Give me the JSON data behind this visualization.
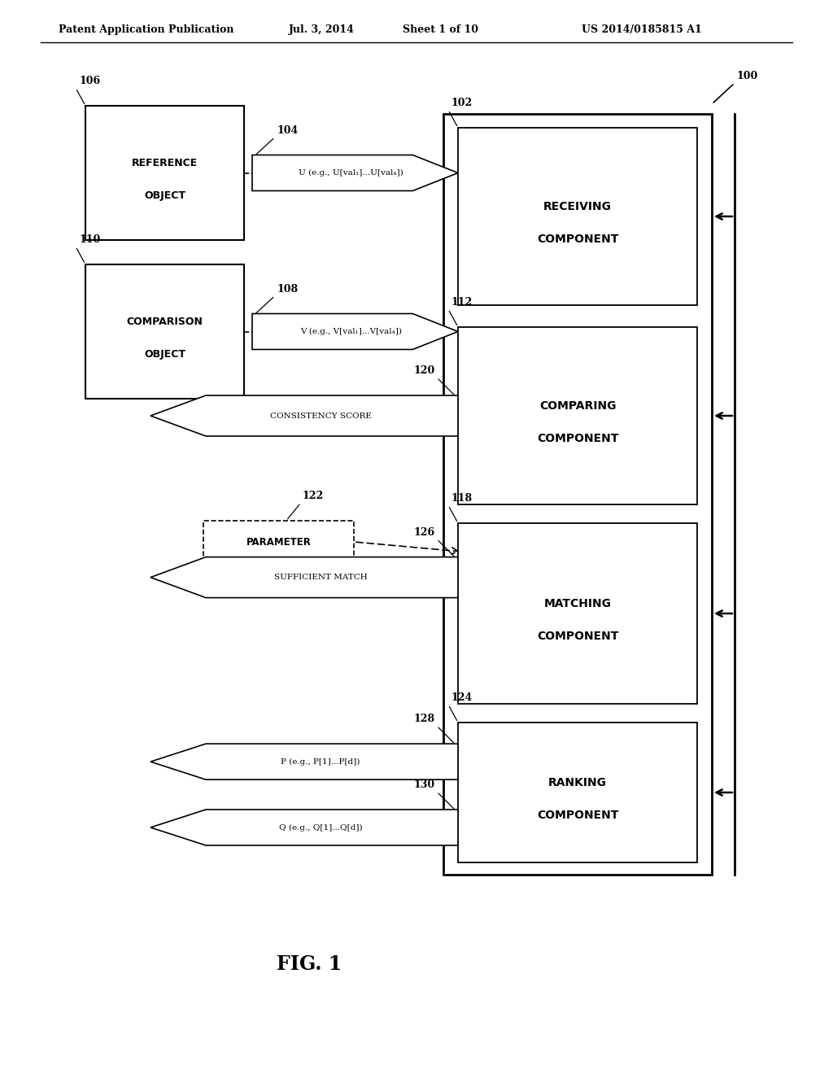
{
  "bg_color": "#ffffff",
  "header_text": "Patent Application Publication",
  "header_date": "Jul. 3, 2014",
  "header_sheet": "Sheet 1 of 10",
  "header_patent": "US 2014/0185815 A1",
  "fig_label": "FIG. 1",
  "label_100": "100",
  "label_102": "102",
  "label_104": "104",
  "label_106": "106",
  "label_108": "108",
  "label_110": "110",
  "label_112": "112",
  "label_118": "118",
  "label_120": "120",
  "label_122": "122",
  "label_124": "124",
  "label_126": "126",
  "label_128": "128",
  "label_130": "130",
  "box_ref_line1": "REFERENCE",
  "box_ref_line2": "OBJECT",
  "box_comp_line1": "COMPARISON",
  "box_comp_line2": "OBJECT",
  "box_receiving_line1": "RECEIVING",
  "box_receiving_line2": "COMPONENT",
  "box_comparing_line1": "COMPARING",
  "box_comparing_line2": "COMPONENT",
  "box_matching_line1": "MATCHING",
  "box_matching_line2": "COMPONENT",
  "box_ranking_line1": "RANKING",
  "box_ranking_line2": "COMPONENT",
  "arrow_u_text": "U (e.g., U[val₁]...U[val₄])",
  "arrow_v_text": "V (e.g., V[val₁]...V[val₄])",
  "arrow_consistency": "CONSISTENCY SCORE",
  "arrow_parameter": "PARAMETER",
  "arrow_sufficient": "SUFFICIENT MATCH",
  "arrow_p_text": "P (e.g., P[1]...P[d])",
  "arrow_q_text": "Q (e.g., Q[1]...Q[d])"
}
